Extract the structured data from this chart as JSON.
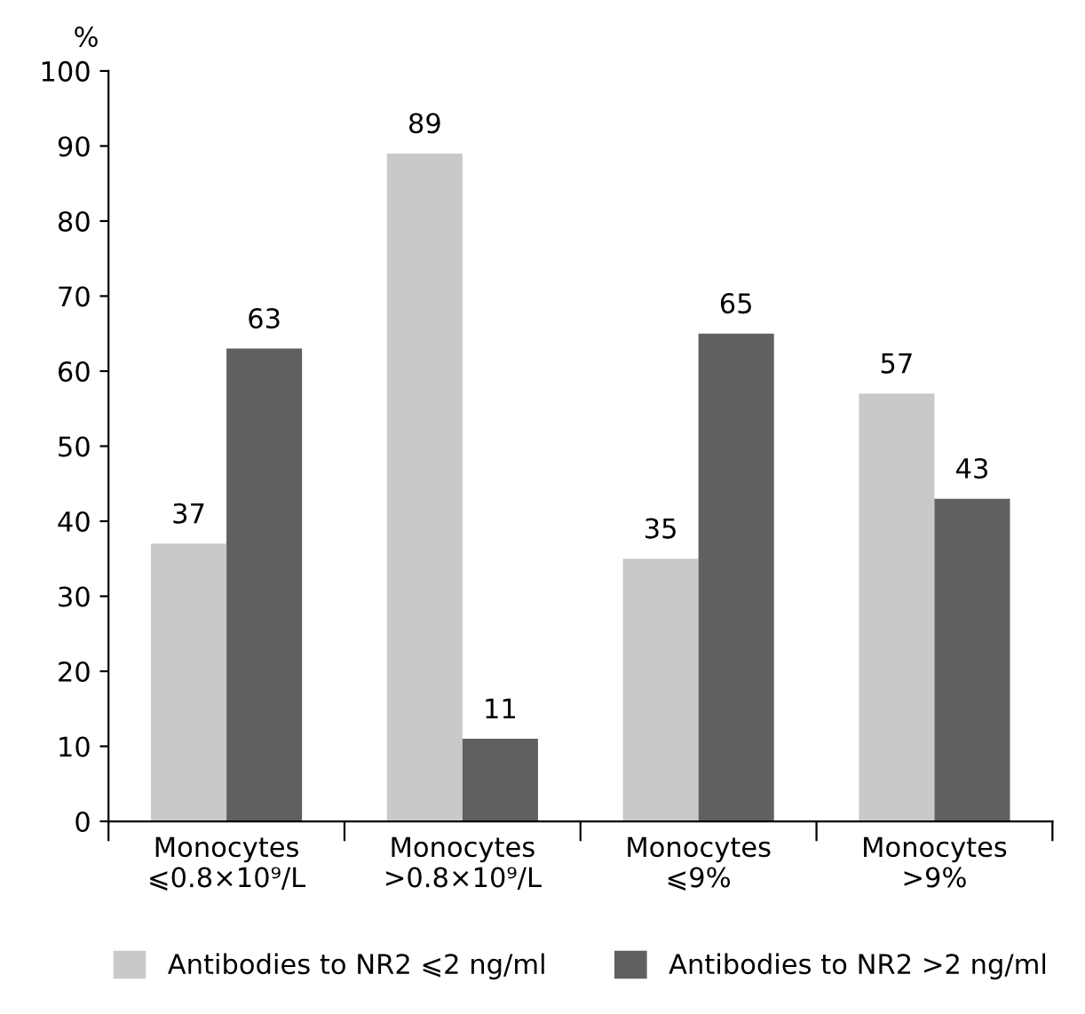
{
  "chart_data": {
    "type": "bar",
    "ylabel": "%",
    "categories": [
      "Monocytes\n⩽0.8×10⁹/L",
      "Monocytes\n>0.8×10⁹/L",
      "Monocytes\n⩽9%",
      "Monocytes\n>9%"
    ],
    "series": [
      {
        "name": "Antibodies to NR2 ⩽2 ng/ml",
        "color": "#c8c9cb",
        "values": [
          37,
          89,
          35,
          57
        ]
      },
      {
        "name": "Antibodies to NR2 >2 ng/ml",
        "color": "#5f6062",
        "values": [
          63,
          11,
          65,
          43
        ]
      }
    ],
    "ylim": [
      0,
      100
    ],
    "yticks": [
      0,
      10,
      20,
      30,
      40,
      50,
      60,
      70,
      80,
      90,
      100
    ],
    "data_labels": true,
    "grid": false,
    "legend": "bottom"
  }
}
